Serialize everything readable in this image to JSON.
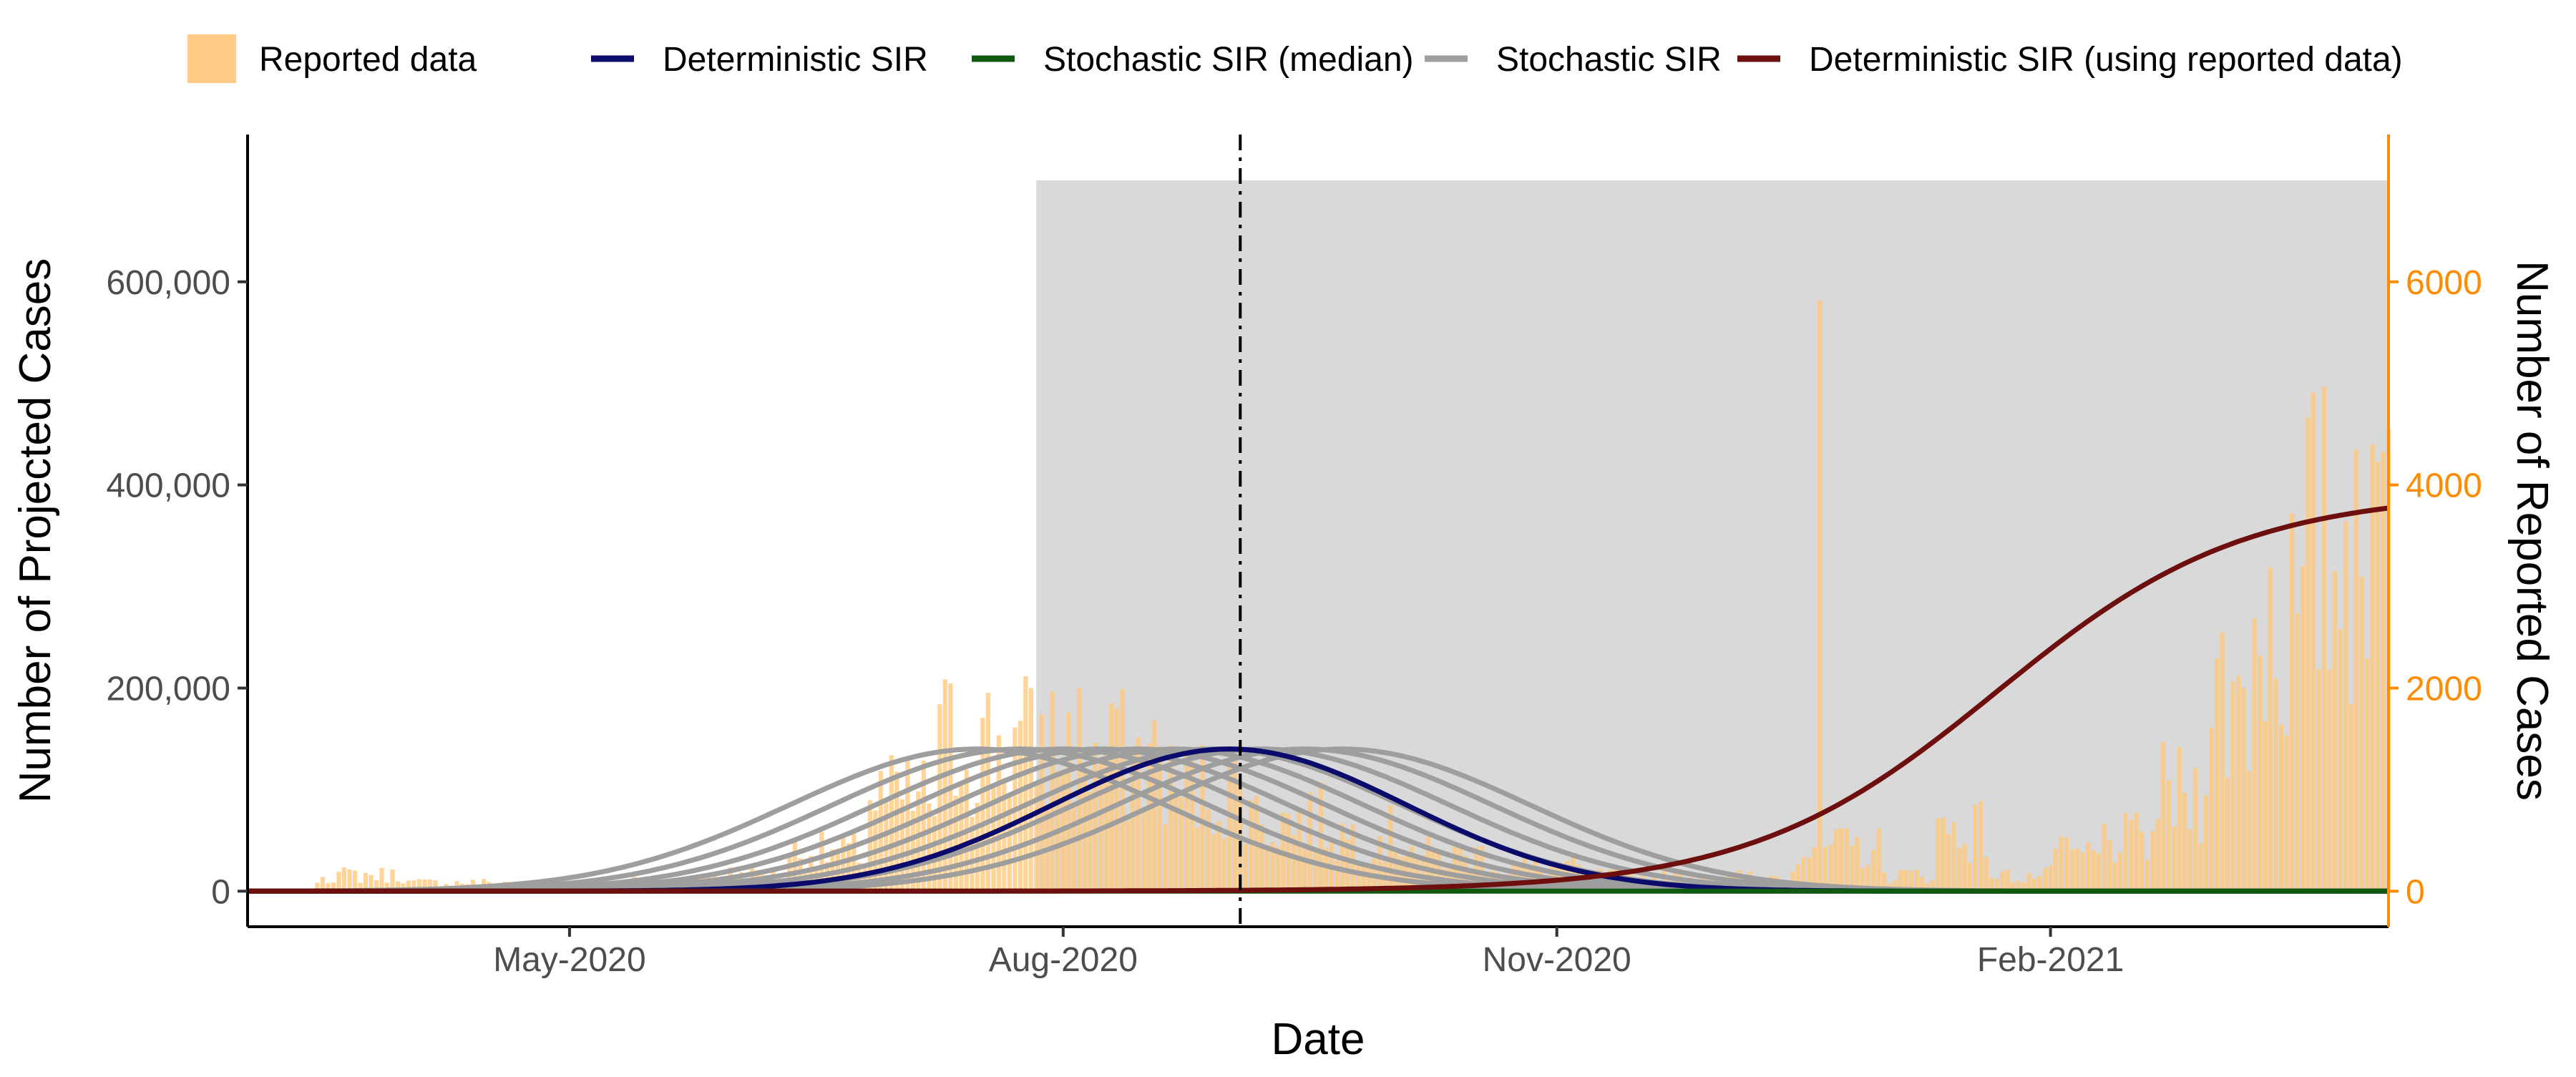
{
  "chart_data": {
    "type": "line",
    "x_axis": {
      "label": "Date",
      "range": [
        "2020-03-02",
        "2021-04-05"
      ],
      "ticks": [
        {
          "date": "2020-05-01",
          "label": "May-2020"
        },
        {
          "date": "2020-08-01",
          "label": "Aug-2020"
        },
        {
          "date": "2020-11-01",
          "label": "Nov-2020"
        },
        {
          "date": "2021-02-01",
          "label": "Feb-2021"
        }
      ]
    },
    "y_left": {
      "label": "Number of Projected Cases",
      "range": [
        -35000,
        745000
      ],
      "ticks": [
        {
          "value": 0,
          "label": "0"
        },
        {
          "value": 200000,
          "label": "200,000"
        },
        {
          "value": 400000,
          "label": "400,000"
        },
        {
          "value": 600000,
          "label": "600,000"
        }
      ]
    },
    "y_right": {
      "label": "Number of Reported Cases",
      "color": "#ff8c00",
      "range": [
        -350,
        7450
      ],
      "ticks": [
        {
          "value": 0,
          "label": "0"
        },
        {
          "value": 2000,
          "label": "2000"
        },
        {
          "value": 4000,
          "label": "4000"
        },
        {
          "value": 6000,
          "label": "6000"
        }
      ]
    },
    "shaded_region": {
      "from": "2020-07-27",
      "to": "2021-04-05",
      "y_top": 700000,
      "color": "#d9d9d9"
    },
    "vline": {
      "date": "2020-09-03",
      "style": "dotdash"
    },
    "legend": {
      "position": "top",
      "entries": [
        {
          "label": "Reported data",
          "kind": "box",
          "color": "#ffcc88"
        },
        {
          "label": "Deterministic SIR",
          "kind": "line",
          "color": "#0b0b6b"
        },
        {
          "label": "Stochastic SIR (median)",
          "kind": "line",
          "color": "#0f5a0f"
        },
        {
          "label": "Stochastic SIR",
          "kind": "line",
          "color": "#9e9e9e"
        },
        {
          "label": "Deterministic SIR (using reported data)",
          "kind": "line",
          "color": "#6e0f0f"
        }
      ]
    },
    "bars": {
      "axis": "right",
      "color": "#ffc878",
      "opacity": 0.78,
      "segments": [
        {
          "from": "2020-03-02",
          "to": "2020-03-14",
          "level": 12
        },
        {
          "from": "2020-03-15",
          "to": "2020-03-31",
          "level": 160
        },
        {
          "from": "2020-04-01",
          "to": "2020-04-20",
          "level": 85
        },
        {
          "from": "2020-04-21",
          "to": "2020-05-10",
          "level": 60
        },
        {
          "from": "2020-05-11",
          "to": "2020-05-25",
          "level": 95
        },
        {
          "from": "2020-05-26",
          "to": "2020-06-10",
          "level": 170
        },
        {
          "from": "2020-06-11",
          "to": "2020-06-25",
          "level": 380
        },
        {
          "from": "2020-06-26",
          "to": "2020-07-08",
          "level": 900
        },
        {
          "from": "2020-07-09",
          "to": "2020-07-20",
          "level": 1450
        },
        {
          "from": "2020-07-21",
          "to": "2020-08-05",
          "level": 1450
        },
        {
          "from": "2020-08-06",
          "to": "2020-08-20",
          "level": 1300
        },
        {
          "from": "2020-08-21",
          "to": "2020-09-05",
          "level": 1000
        },
        {
          "from": "2020-09-06",
          "to": "2020-09-20",
          "level": 700
        },
        {
          "from": "2020-09-21",
          "to": "2020-10-05",
          "level": 550
        },
        {
          "from": "2020-10-06",
          "to": "2020-10-20",
          "level": 350
        },
        {
          "from": "2020-10-21",
          "to": "2020-11-05",
          "level": 230
        },
        {
          "from": "2020-11-06",
          "to": "2020-11-30",
          "level": 150
        },
        {
          "from": "2020-12-01",
          "to": "2020-12-14",
          "level": 140
        },
        {
          "from": "2020-12-15",
          "to": "2020-12-31",
          "level": 420
        },
        {
          "from": "2021-01-01",
          "to": "2021-01-10",
          "level": 160
        },
        {
          "from": "2021-01-11",
          "to": "2021-01-20",
          "level": 600
        },
        {
          "from": "2021-01-21",
          "to": "2021-01-31",
          "level": 150
        },
        {
          "from": "2021-02-01",
          "to": "2021-02-10",
          "level": 350
        },
        {
          "from": "2021-02-11",
          "to": "2021-02-20",
          "level": 500
        },
        {
          "from": "2021-02-21",
          "to": "2021-03-01",
          "level": 950
        },
        {
          "from": "2021-03-02",
          "to": "2021-03-10",
          "level": 1900
        },
        {
          "from": "2021-03-11",
          "to": "2021-03-20",
          "level": 2700
        },
        {
          "from": "2021-03-21",
          "to": "2021-03-31",
          "level": 3300
        },
        {
          "from": "2021-04-01",
          "to": "2021-04-05",
          "level": 3600
        }
      ],
      "spikes": [
        {
          "date": "2020-07-26",
          "value": 2000
        },
        {
          "date": "2020-08-10",
          "value": 1850
        },
        {
          "date": "2020-08-11",
          "value": 1800
        },
        {
          "date": "2020-12-20",
          "value": 5820
        },
        {
          "date": "2021-03-20",
          "value": 3200
        },
        {
          "date": "2021-03-30",
          "value": 4350
        },
        {
          "date": "2021-04-02",
          "value": 4400
        },
        {
          "date": "2021-04-05",
          "value": 4550
        }
      ]
    },
    "series": [
      {
        "name": "Deterministic SIR",
        "kind": "gaussian",
        "axis": "left",
        "color": "#0b0b6b",
        "peak": 140000,
        "peak_date": "2020-09-01",
        "sigma_days": 33
      },
      {
        "name": "Stochastic SIR (median)",
        "kind": "zero",
        "axis": "left",
        "color": "#0f5a0f",
        "value": 0
      },
      {
        "name": "Stochastic SIR",
        "kind": "gaussian_family",
        "axis": "left",
        "color": "#9e9e9e",
        "peak": 140000,
        "sigma_days": 35,
        "peak_dates": [
          "2020-07-16",
          "2020-07-24",
          "2020-08-01",
          "2020-08-08",
          "2020-08-15",
          "2020-08-22",
          "2020-08-29",
          "2020-09-07",
          "2020-09-15",
          "2020-09-22"
        ]
      },
      {
        "name": "Deterministic SIR (using reported data)",
        "kind": "logistic",
        "axis": "left",
        "color": "#6e0f0f",
        "top": 393000,
        "mid_date": "2021-01-22",
        "scale_days": 23
      }
    ]
  }
}
